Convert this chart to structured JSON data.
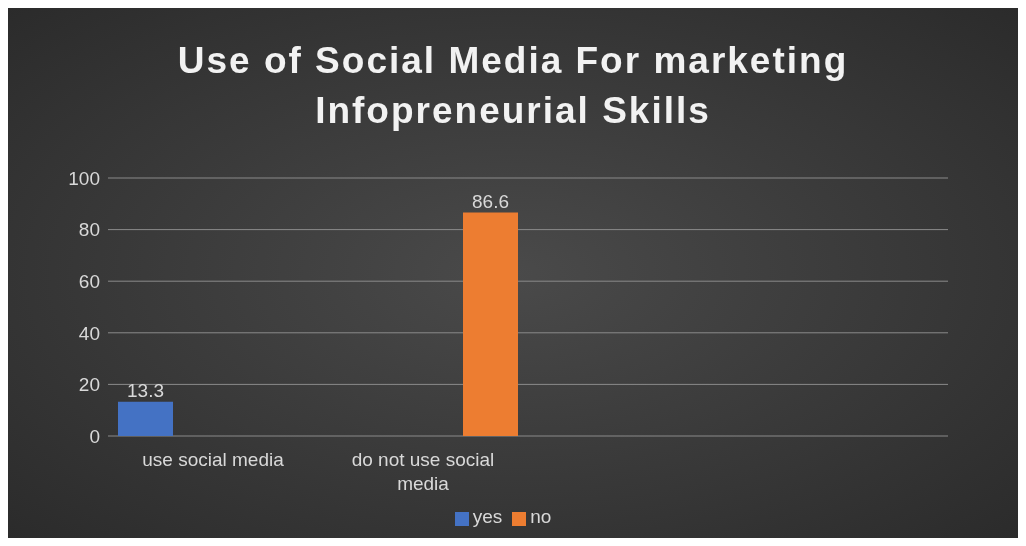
{
  "chart_data": {
    "type": "bar",
    "title": "Use of Social Media For marketing Infopreneurial Skills",
    "categories": [
      "use social media",
      "do not use social media",
      null,
      null
    ],
    "series": [
      {
        "name": "yes",
        "color": "#4472c4",
        "values": [
          13.3,
          null,
          null,
          null
        ]
      },
      {
        "name": "no",
        "color": "#ed7d31",
        "values": [
          null,
          86.6,
          null,
          null
        ]
      }
    ],
    "ylim": [
      0,
      100
    ],
    "yticks": [
      0,
      20,
      40,
      60,
      80,
      100
    ],
    "grid": "y",
    "legend": "bottom",
    "data_labels": true
  }
}
